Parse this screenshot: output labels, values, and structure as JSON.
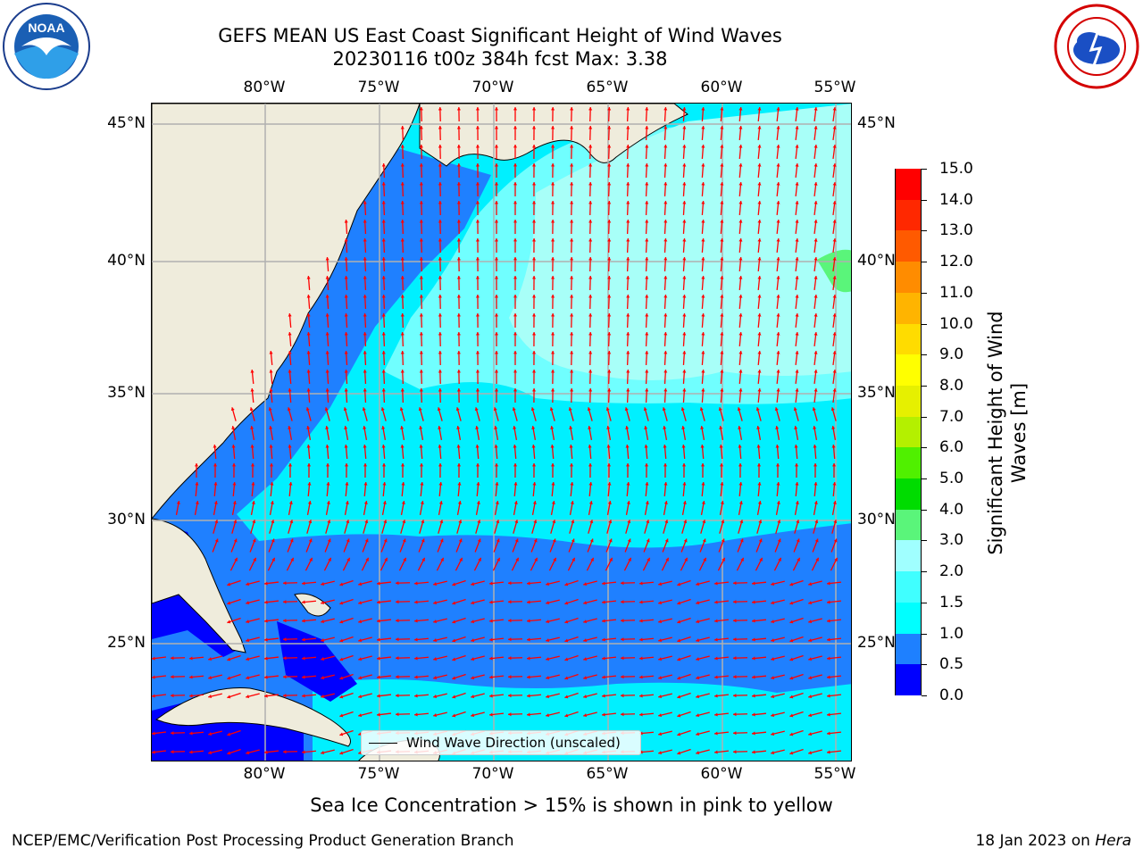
{
  "title_line1": "GEFS MEAN US East Coast Significant Height of Wind Waves",
  "title_line2": "20230116 t00z 384h fcst   Max: 3.38",
  "lon_labels": [
    "80°W",
    "75°W",
    "70°W",
    "65°W",
    "60°W",
    "55°W"
  ],
  "lat_labels": [
    "45°N",
    "40°N",
    "35°N",
    "30°N",
    "25°N"
  ],
  "colorbar": {
    "label": "Significant Height of Wind Waves [m]",
    "ticks": [
      "0.0",
      "0.5",
      "1.0",
      "1.5",
      "2.0",
      "3.0",
      "4.0",
      "5.0",
      "6.0",
      "7.0",
      "8.0",
      "9.0",
      "10.0",
      "11.0",
      "12.0",
      "13.0",
      "14.0",
      "15.0"
    ],
    "colors": [
      "#0000ff",
      "#1e80ff",
      "#00ffff",
      "#40ffff",
      "#a0ffff",
      "#5af57a",
      "#00dc00",
      "#50f000",
      "#b4f000",
      "#e6f000",
      "#ffff00",
      "#ffdc00",
      "#ffb400",
      "#ff8c00",
      "#ff5a00",
      "#ff2800",
      "#ff0000"
    ]
  },
  "legend": {
    "label": "Wind Wave Direction (unscaled)"
  },
  "footer": {
    "center": "Sea Ice Concentration > 15% is shown in pink to yellow",
    "left": "NCEP/EMC/Verification Post Processing Product Generation Branch",
    "right_date": "18 Jan 2023 on ",
    "right_host": "Hera"
  },
  "logos": {
    "left": "NOAA",
    "right": "NATIONAL WEATHER SERVICE"
  },
  "colors": {
    "land": "#efecdc",
    "arrow": "#ff0000",
    "grid": "#b0b0b0"
  }
}
